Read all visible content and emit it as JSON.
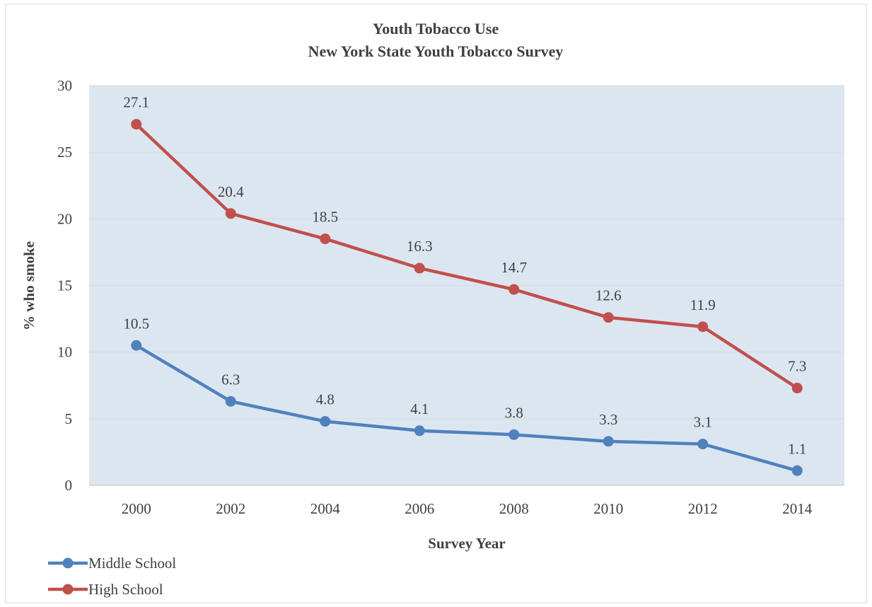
{
  "chart_data": {
    "type": "line",
    "title": "Youth Tobacco Use",
    "subtitle": "New York State Youth Tobacco Survey",
    "xlabel": "Survey Year",
    "ylabel": "% who smoke",
    "categories": [
      "2000",
      "2002",
      "2004",
      "2006",
      "2008",
      "2010",
      "2012",
      "2014"
    ],
    "ylim": [
      0,
      30
    ],
    "yticks": [
      "0",
      "5",
      "10",
      "15",
      "20",
      "25",
      "30"
    ],
    "grid": true,
    "legend_position": "bottom-left",
    "plot_background": "#dce6f1",
    "series": [
      {
        "name": "Middle School",
        "color": "#4f81bd",
        "values": [
          10.5,
          6.3,
          4.8,
          4.1,
          3.8,
          3.3,
          3.1,
          1.1
        ],
        "labels": [
          "10.5",
          "6.3",
          "4.8",
          "4.1",
          "3.8",
          "3.3",
          "3.1",
          "1.1"
        ]
      },
      {
        "name": "High School",
        "color": "#c0504d",
        "values": [
          27.1,
          20.4,
          18.5,
          16.3,
          14.7,
          12.6,
          11.9,
          7.3
        ],
        "labels": [
          "27.1",
          "20.4",
          "18.5",
          "16.3",
          "14.7",
          "12.6",
          "11.9",
          "7.3"
        ]
      }
    ]
  }
}
